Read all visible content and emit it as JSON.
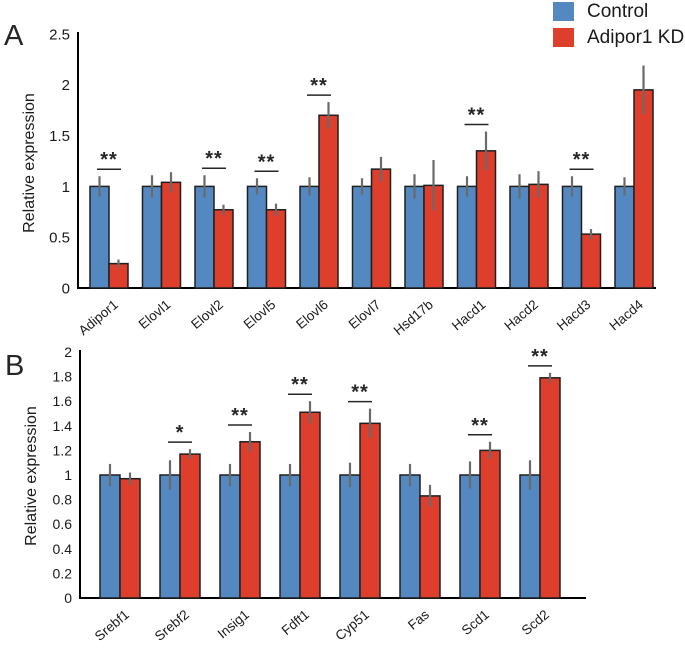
{
  "legend": {
    "items": [
      {
        "label": "Control",
        "color": "#5389c0"
      },
      {
        "label": "Adipor1 KD",
        "color": "#de3e2c"
      }
    ]
  },
  "colors": {
    "axis": "#000000",
    "error_bar": "#6a6a6a",
    "bar_outline": "#1f1f1f",
    "text": "#1a1a1a",
    "significance": "#262626"
  },
  "chart_data": [
    {
      "type": "bar",
      "panel_letter": "A",
      "ylabel": "Relative expression",
      "xlabel": "",
      "ylim": [
        0,
        2.5
      ],
      "yticks": [
        0,
        0.5,
        1,
        1.5,
        2,
        2.5
      ],
      "ytick_labels": [
        "0",
        "0.5",
        "1",
        "1.5",
        "2",
        "2.5"
      ],
      "grid": false,
      "legend_position": "top-right",
      "categories": [
        "Adipor1",
        "Elovl1",
        "Elovl2",
        "Elovl5",
        "Elovl6",
        "Elovl7",
        "Hsd17b",
        "Hacd1",
        "Hacd2",
        "Hacd3",
        "Hacd4"
      ],
      "series": [
        {
          "name": "Control",
          "color": "#5389c0",
          "values": [
            1.0,
            1.0,
            1.0,
            1.0,
            1.0,
            1.0,
            1.0,
            1.0,
            1.0,
            1.0,
            1.0
          ],
          "errors": [
            0.1,
            0.11,
            0.11,
            0.08,
            0.09,
            0.08,
            0.12,
            0.1,
            0.12,
            0.1,
            0.09
          ]
        },
        {
          "name": "Adipor1 KD",
          "color": "#de3e2c",
          "values": [
            0.24,
            1.04,
            0.77,
            0.77,
            1.7,
            1.17,
            1.01,
            1.35,
            1.02,
            0.53,
            1.95
          ],
          "errors": [
            0.04,
            0.1,
            0.05,
            0.06,
            0.13,
            0.12,
            0.25,
            0.19,
            0.13,
            0.05,
            0.24
          ]
        }
      ],
      "significance": [
        "**",
        null,
        "**",
        "**",
        "**",
        null,
        null,
        "**",
        null,
        "**",
        null
      ]
    },
    {
      "type": "bar",
      "panel_letter": "B",
      "ylabel": "Relative expression",
      "xlabel": "",
      "ylim": [
        0,
        2
      ],
      "yticks": [
        0,
        0.2,
        0.4,
        0.6,
        0.8,
        1,
        1.2,
        1.4,
        1.6,
        1.8,
        2
      ],
      "ytick_labels": [
        "0",
        "0.2",
        "0.4",
        "0.6",
        "0.8",
        "1",
        "1.2",
        "1.4",
        "1.6",
        "1.8",
        "2"
      ],
      "grid": false,
      "legend_position": "none",
      "categories": [
        "Srebf1",
        "Srebf2",
        "Insig1",
        "Fdft1",
        "Cyp51",
        "Fas",
        "Scd1",
        "Scd2"
      ],
      "series": [
        {
          "name": "Control",
          "color": "#5389c0",
          "values": [
            1.0,
            1.0,
            1.0,
            1.0,
            1.0,
            1.0,
            1.0,
            1.0
          ],
          "errors": [
            0.09,
            0.12,
            0.09,
            0.09,
            0.1,
            0.09,
            0.11,
            0.12
          ]
        },
        {
          "name": "Adipor1 KD",
          "color": "#de3e2c",
          "values": [
            0.97,
            1.17,
            1.27,
            1.51,
            1.42,
            0.83,
            1.2,
            1.79
          ],
          "errors": [
            0.05,
            0.04,
            0.08,
            0.09,
            0.12,
            0.09,
            0.07,
            0.04
          ]
        }
      ],
      "significance": [
        null,
        "*",
        "**",
        "**",
        "**",
        null,
        "**",
        "**"
      ]
    }
  ]
}
